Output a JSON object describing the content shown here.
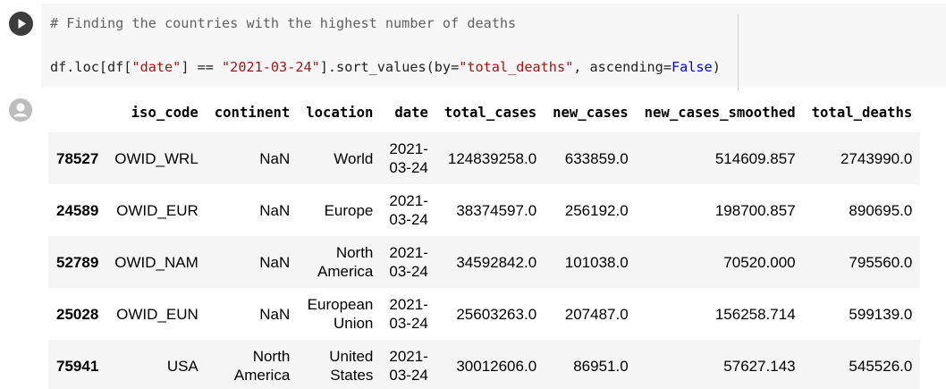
{
  "code": {
    "line1": "# Finding the countries with the highest number of deaths",
    "line2_p1": "df.loc[df[",
    "line2_s1": "\"date\"",
    "line2_p2": "] == ",
    "line2_s2": "\"2021-03-24\"",
    "line2_p3": "].sort_values(by=",
    "line2_s3": "\"total_deaths\"",
    "line2_p4": ", ascending=",
    "line2_kw": "False",
    "line2_p5": ")"
  },
  "table": {
    "columns": [
      "",
      "iso_code",
      "continent",
      "location",
      "date",
      "total_cases",
      "new_cases",
      "new_cases_smoothed",
      "total_deaths"
    ],
    "rows": [
      {
        "index": "78527",
        "iso_code": "OWID_WRL",
        "continent": "NaN",
        "location": "World",
        "date": "2021-03-24",
        "total_cases": "124839258.0",
        "new_cases": "633859.0",
        "new_cases_smoothed": "514609.857",
        "total_deaths": "2743990.0"
      },
      {
        "index": "24589",
        "iso_code": "OWID_EUR",
        "continent": "NaN",
        "location": "Europe",
        "date": "2021-03-24",
        "total_cases": "38374597.0",
        "new_cases": "256192.0",
        "new_cases_smoothed": "198700.857",
        "total_deaths": "890695.0"
      },
      {
        "index": "52789",
        "iso_code": "OWID_NAM",
        "continent": "NaN",
        "location": "North America",
        "date": "2021-03-24",
        "total_cases": "34592842.0",
        "new_cases": "101038.0",
        "new_cases_smoothed": "70520.000",
        "total_deaths": "795560.0"
      },
      {
        "index": "25028",
        "iso_code": "OWID_EUN",
        "continent": "NaN",
        "location": "European Union",
        "date": "2021-03-24",
        "total_cases": "25603263.0",
        "new_cases": "207487.0",
        "new_cases_smoothed": "156258.714",
        "total_deaths": "599139.0"
      },
      {
        "index": "75941",
        "iso_code": "USA",
        "continent": "North America",
        "location": "United States",
        "date": "2021-03-24",
        "total_cases": "30012606.0",
        "new_cases": "86951.0",
        "new_cases_smoothed": "57627.143",
        "total_deaths": "545526.0"
      }
    ]
  },
  "icons": {
    "run": "play-icon",
    "output": "avatar-icon"
  },
  "colors": {
    "run_button": "#3c3c3c",
    "editor_bg": "#f7f7f7",
    "row_stripe": "#f5f5f5",
    "string": "#a31515",
    "keyword": "#0000ff"
  }
}
